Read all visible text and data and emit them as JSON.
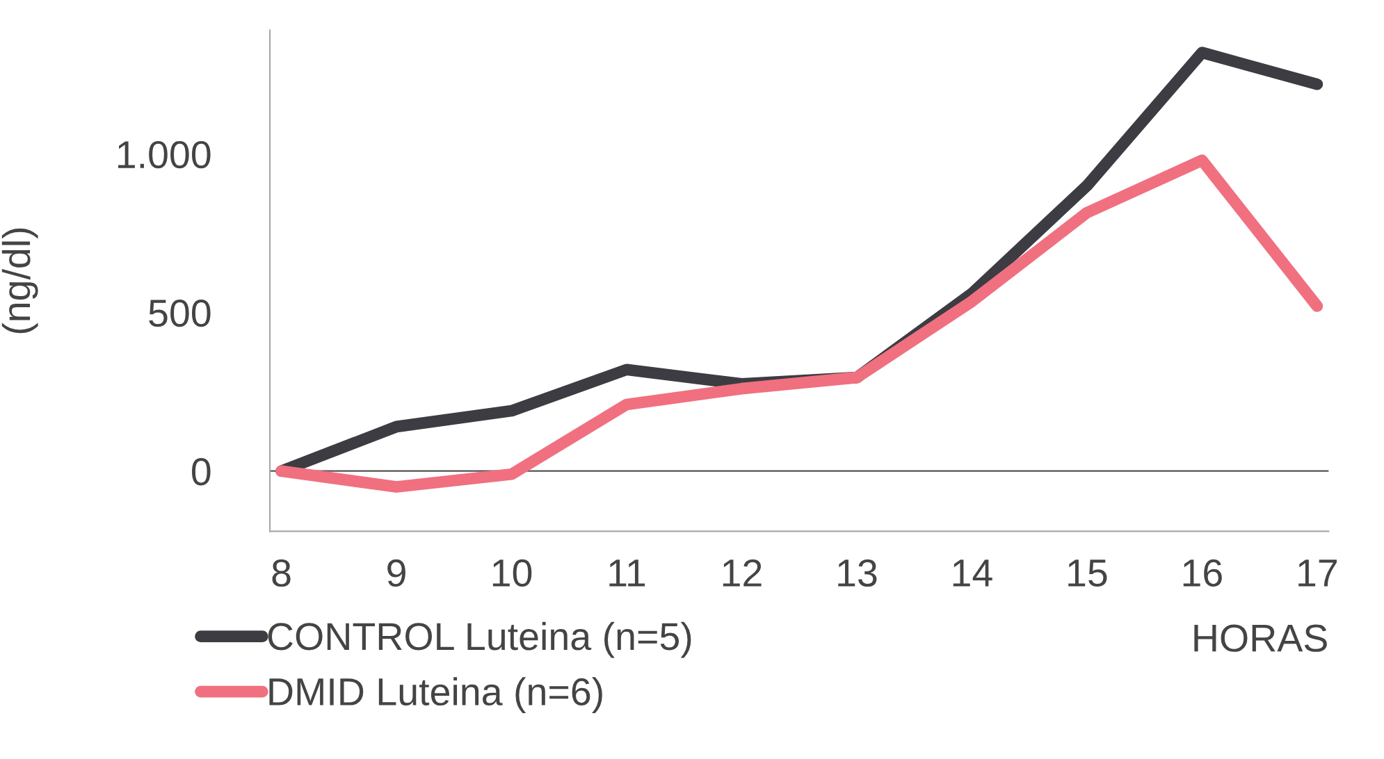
{
  "chart_data": {
    "type": "line",
    "xlabel": "HORAS",
    "ylabel": "(ng/dl)",
    "x": [
      8,
      9,
      10,
      11,
      12,
      13,
      14,
      15,
      16,
      17
    ],
    "series": [
      {
        "name": "CONTROL Luteina (n=5)",
        "color": "#3c3c42",
        "values": [
          0,
          140,
          190,
          320,
          275,
          295,
          560,
          900,
          1320,
          1220
        ]
      },
      {
        "name": "DMID Luteina (n=6)",
        "color": "#f07080",
        "values": [
          0,
          -50,
          -10,
          210,
          260,
          295,
          535,
          815,
          980,
          520
        ]
      }
    ],
    "xlim": [
      7.9,
      17.1
    ],
    "xticks": [
      8,
      9,
      10,
      11,
      12,
      13,
      14,
      15,
      16,
      17
    ],
    "ylim": [
      -190,
      1390
    ],
    "yticks": [
      0,
      500,
      {
        "value": 1000,
        "label": "1.000"
      }
    ],
    "ref_lines": [
      {
        "axis": "y",
        "value": 0,
        "color": "#555555"
      }
    ],
    "legend": "bottom left",
    "grid": false
  }
}
